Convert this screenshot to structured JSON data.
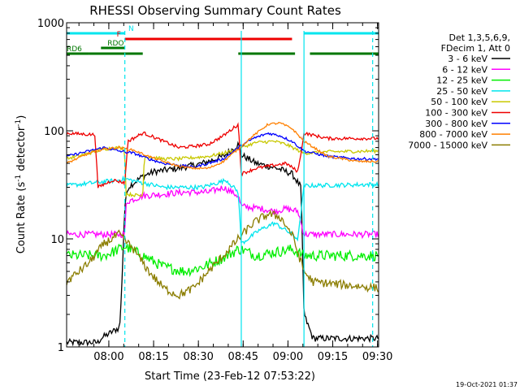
{
  "chart_data": {
    "type": "line",
    "title": "RHESSI Observing Summary Count Rates",
    "xlabel": "Start Time (23-Feb-12 07:53:22)",
    "ylabel_parts": [
      "Count Rate (s",
      "-1",
      " detector",
      "-1",
      ")"
    ],
    "yscale": "log",
    "ylim": [
      1,
      1000
    ],
    "xlim_minutes": [
      -7.5,
      97
    ],
    "x_ticks": [
      "08:00",
      "08:15",
      "08:30",
      "08:45",
      "09:00",
      "09:15",
      "09:30"
    ],
    "y_ticks": [
      "1",
      "10",
      "100",
      "1000"
    ],
    "legend_header": [
      "Det 1,3,5,6,9,",
      "FDecim 1, Att 0"
    ],
    "footer_stamp": "19-Oct-2021 01:37",
    "flags": [
      {
        "label": "N",
        "color": "#00e5ee",
        "segments": [
          [
            -7.5,
            12
          ],
          [
            72,
            97
          ]
        ],
        "level": 0
      },
      {
        "label": "F",
        "color": "#ee0000",
        "segments": [
          [
            12,
            68
          ]
        ],
        "level": 1
      },
      {
        "label": "RDO",
        "color": "#007700",
        "segments": [
          [
            4,
            12
          ]
        ],
        "level": 2
      },
      {
        "label": "RD6",
        "color": "#007700",
        "segments": [
          [
            -7.5,
            0
          ],
          [
            0,
            18
          ],
          [
            50,
            69
          ],
          [
            74,
            97
          ]
        ],
        "level": 3
      }
    ],
    "vlines": [
      {
        "x": 12,
        "style": "dashed"
      },
      {
        "x": 51,
        "style": "solid"
      },
      {
        "x": 72,
        "style": "solid"
      },
      {
        "x": 95,
        "style": "dashed"
      }
    ],
    "series": [
      {
        "name": "3 - 6 keV",
        "color": "#000000",
        "noise": 0.03,
        "points": [
          [
            -7.5,
            1.1
          ],
          [
            3,
            1.1
          ],
          [
            4,
            1.2
          ],
          [
            10,
            1.5
          ],
          [
            10.5,
            1.8
          ],
          [
            12,
            20
          ],
          [
            13,
            30
          ],
          [
            18,
            38
          ],
          [
            22,
            42
          ],
          [
            30,
            45
          ],
          [
            38,
            50
          ],
          [
            45,
            58
          ],
          [
            50,
            75
          ],
          [
            51,
            60
          ],
          [
            56,
            50
          ],
          [
            63,
            45
          ],
          [
            68,
            40
          ],
          [
            71,
            30
          ],
          [
            72,
            2
          ],
          [
            75,
            1.2
          ],
          [
            97,
            1.2
          ]
        ]
      },
      {
        "name": "6 - 12 keV",
        "color": "#ff00ff",
        "noise": 0.03,
        "points": [
          [
            -7.5,
            11
          ],
          [
            12,
            11
          ],
          [
            12.5,
            22
          ],
          [
            18,
            25
          ],
          [
            25,
            26
          ],
          [
            32,
            27
          ],
          [
            40,
            27
          ],
          [
            45,
            30
          ],
          [
            50,
            25
          ],
          [
            51,
            20
          ],
          [
            58,
            19
          ],
          [
            62,
            18
          ],
          [
            66,
            19
          ],
          [
            70,
            18
          ],
          [
            72,
            11
          ],
          [
            97,
            11
          ]
        ]
      },
      {
        "name": "12 - 25 keV",
        "color": "#00ee00",
        "noise": 0.05,
        "points": [
          [
            -7.5,
            7
          ],
          [
            5,
            7
          ],
          [
            10,
            8
          ],
          [
            12,
            8.5
          ],
          [
            18,
            7
          ],
          [
            25,
            5.5
          ],
          [
            32,
            5
          ],
          [
            38,
            5.5
          ],
          [
            44,
            6.5
          ],
          [
            50,
            8
          ],
          [
            51,
            8
          ],
          [
            56,
            7
          ],
          [
            62,
            7.5
          ],
          [
            68,
            8
          ],
          [
            72,
            7
          ],
          [
            97,
            7
          ]
        ]
      },
      {
        "name": "25 - 50 keV",
        "color": "#00e5ee",
        "noise": 0.02,
        "points": [
          [
            -7.5,
            31
          ],
          [
            10,
            35
          ],
          [
            12,
            36
          ],
          [
            18,
            33
          ],
          [
            25,
            30
          ],
          [
            30,
            30
          ],
          [
            38,
            30
          ],
          [
            46,
            35
          ],
          [
            50,
            27
          ],
          [
            51,
            9
          ],
          [
            57,
            12
          ],
          [
            62,
            14
          ],
          [
            66,
            12
          ],
          [
            70,
            10
          ],
          [
            72,
            31
          ],
          [
            97,
            32
          ]
        ]
      },
      {
        "name": "50 - 100 keV",
        "color": "#c8c800",
        "noise": 0.015,
        "points": [
          [
            -7.5,
            55
          ],
          [
            0,
            62
          ],
          [
            5,
            68
          ],
          [
            10,
            70
          ],
          [
            12,
            68
          ],
          [
            12.3,
            26
          ],
          [
            18,
            25
          ],
          [
            18.5,
            58
          ],
          [
            25,
            55
          ],
          [
            30,
            55
          ],
          [
            40,
            58
          ],
          [
            48,
            65
          ],
          [
            50,
            70
          ],
          [
            51,
            70
          ],
          [
            56,
            78
          ],
          [
            62,
            80
          ],
          [
            66,
            75
          ],
          [
            72,
            62
          ],
          [
            80,
            64
          ],
          [
            97,
            65
          ]
        ]
      },
      {
        "name": "100 - 300 keV",
        "color": "#ee0000",
        "noise": 0.015,
        "points": [
          [
            -7.5,
            95
          ],
          [
            2,
            92
          ],
          [
            3,
            30
          ],
          [
            8,
            35
          ],
          [
            12,
            33
          ],
          [
            13,
            80
          ],
          [
            18,
            95
          ],
          [
            18.5,
            95
          ],
          [
            25,
            80
          ],
          [
            30,
            70
          ],
          [
            35,
            72
          ],
          [
            40,
            75
          ],
          [
            45,
            90
          ],
          [
            50,
            115
          ],
          [
            51,
            40
          ],
          [
            56,
            45
          ],
          [
            62,
            48
          ],
          [
            66,
            50
          ],
          [
            70,
            42
          ],
          [
            72,
            95
          ],
          [
            80,
            85
          ],
          [
            97,
            85
          ]
        ]
      },
      {
        "name": "300 - 800 keV",
        "color": "#0000ff",
        "noise": 0.012,
        "points": [
          [
            -7.5,
            58
          ],
          [
            0,
            65
          ],
          [
            5,
            70
          ],
          [
            10,
            65
          ],
          [
            15,
            62
          ],
          [
            20,
            55
          ],
          [
            25,
            50
          ],
          [
            30,
            48
          ],
          [
            35,
            46
          ],
          [
            40,
            50
          ],
          [
            45,
            55
          ],
          [
            50,
            70
          ],
          [
            55,
            85
          ],
          [
            60,
            95
          ],
          [
            64,
            90
          ],
          [
            68,
            80
          ],
          [
            72,
            65
          ],
          [
            80,
            58
          ],
          [
            90,
            55
          ],
          [
            97,
            55
          ]
        ]
      },
      {
        "name": "800 - 7000 keV",
        "color": "#ff8000",
        "noise": 0.01,
        "points": [
          [
            -7.5,
            50
          ],
          [
            0,
            62
          ],
          [
            5,
            68
          ],
          [
            10,
            70
          ],
          [
            15,
            66
          ],
          [
            20,
            58
          ],
          [
            25,
            52
          ],
          [
            30,
            47
          ],
          [
            35,
            45
          ],
          [
            40,
            45
          ],
          [
            45,
            52
          ],
          [
            50,
            68
          ],
          [
            55,
            90
          ],
          [
            60,
            115
          ],
          [
            64,
            118
          ],
          [
            68,
            105
          ],
          [
            72,
            80
          ],
          [
            80,
            58
          ],
          [
            90,
            52
          ],
          [
            97,
            52
          ]
        ]
      },
      {
        "name": "7000 - 15000 keV",
        "color": "#8b7d00",
        "noise": 0.04,
        "points": [
          [
            -7.5,
            4
          ],
          [
            0,
            6
          ],
          [
            5,
            9
          ],
          [
            10,
            11
          ],
          [
            15,
            8
          ],
          [
            20,
            5
          ],
          [
            25,
            3.5
          ],
          [
            30,
            3
          ],
          [
            35,
            3.5
          ],
          [
            40,
            5
          ],
          [
            45,
            7
          ],
          [
            50,
            10
          ],
          [
            55,
            14
          ],
          [
            60,
            17
          ],
          [
            64,
            16
          ],
          [
            68,
            11
          ],
          [
            72,
            5
          ],
          [
            75,
            4
          ],
          [
            97,
            3.5
          ]
        ]
      }
    ]
  }
}
